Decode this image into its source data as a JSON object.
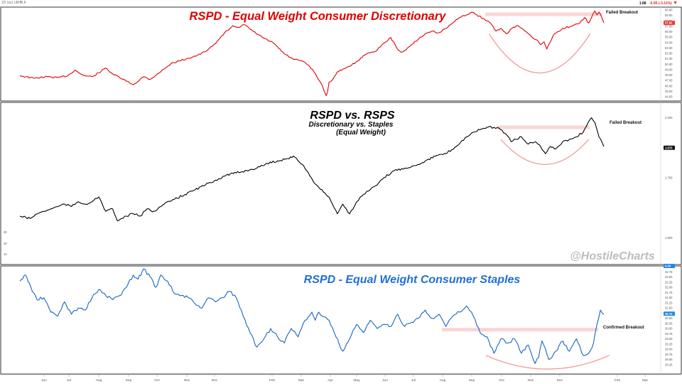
{
  "header": {
    "left_text": "1D (sc) | AHB.6",
    "price": "1.88",
    "change": "-0.06 (-3.11%)",
    "arrow": "▼"
  },
  "watermark": "@HostileCharts",
  "colors": {
    "panel1": "#e00000",
    "panel2": "#000000",
    "panel3": "#1565c0",
    "title3": "#1e6fd9",
    "curve": "#f2a0a0",
    "band": "#fbd5d5",
    "grid": "#eeeeee",
    "frame": "#333333",
    "axis_text": "#555555",
    "watermark": "#bdbdbd",
    "red_tag": "#e53935",
    "blue_tag": "#1e88e5"
  },
  "chart_data": [
    {
      "type": "line",
      "title": "RSPD - Equal Weight Consumer Discretionary",
      "series": [
        {
          "name": "RSPD",
          "x": [
            0,
            20,
            40,
            55,
            70,
            80,
            90,
            97,
            105,
            115,
            125,
            135,
            150,
            165,
            180,
            190,
            200,
            210,
            220,
            232,
            245,
            258,
            270,
            280,
            290,
            298,
            305,
            310,
            318,
            326,
            340,
            355,
            370,
            385,
            398,
            410,
            420,
            428,
            435,
            440,
            443,
            446,
            448,
            450,
            455,
            462,
            470,
            480,
            492,
            500,
            510,
            520,
            530,
            540,
            548,
            555,
            562,
            570,
            580,
            590,
            600,
            610,
            620,
            630,
            640,
            650,
            658,
            665,
            675,
            685,
            693,
            700,
            708,
            716,
            725,
            735,
            745,
            752,
            758,
            763,
            767,
            772,
            778,
            790,
            805,
            815,
            822,
            828,
            833,
            837,
            840,
            843,
            847,
            850
          ],
          "values": [
            47.9,
            47.4,
            47.7,
            47.5,
            47.9,
            48.9,
            48.1,
            47.8,
            47.7,
            48.4,
            49.3,
            48.2,
            47.2,
            46.2,
            47.7,
            47.2,
            48.2,
            49.1,
            50.1,
            50.6,
            51.1,
            51.6,
            52.3,
            53.3,
            54.6,
            55.8,
            56.5,
            57.1,
            56.8,
            57.3,
            56.0,
            54.8,
            53.8,
            51.9,
            50.9,
            50.6,
            49.8,
            48.6,
            47.1,
            46.1,
            45.0,
            44.2,
            45.0,
            46.7,
            47.1,
            48.6,
            49.1,
            49.6,
            50.6,
            51.6,
            52.1,
            52.6,
            53.9,
            54.9,
            53.1,
            52.2,
            52.6,
            53.6,
            54.6,
            55.6,
            56.1,
            55.8,
            56.6,
            57.6,
            58.6,
            59.1,
            59.6,
            59.1,
            58.4,
            57.6,
            56.1,
            56.6,
            55.6,
            56.6,
            57.1,
            56.1,
            55.0,
            54.5,
            53.6,
            54.1,
            52.8,
            54.1,
            55.6,
            56.6,
            57.1,
            57.6,
            58.6,
            57.6,
            58.9,
            59.8,
            59.1,
            59.6,
            58.6,
            57.6
          ]
        }
      ],
      "ylim": [
        44,
        60
      ],
      "yticks": [
        44.0,
        45.0,
        46.0,
        47.0,
        48.0,
        49.0,
        50.0,
        51.0,
        52.0,
        53.0,
        54.0,
        55.0,
        56.0,
        57.0,
        58.0,
        59.0,
        60.0
      ],
      "last_value": "57.62",
      "annotations": [
        {
          "text": "Failed Breakout"
        }
      ],
      "band_level": 59.2,
      "curve": {
        "start": 683,
        "end": 830,
        "top": 55.6,
        "bottom": 48.0
      }
    },
    {
      "type": "line",
      "title": "RSPD vs. RSPS",
      "subtitle_line1": "Discretionary vs. Staples",
      "subtitle_line2": "(Equal Weight)",
      "series": [
        {
          "name": "RSPD/RSPS",
          "x": [
            0,
            15,
            25,
            35,
            45,
            55,
            65,
            75,
            85,
            95,
            105,
            115,
            120,
            125,
            135,
            142,
            148,
            155,
            165,
            175,
            185,
            195,
            210,
            225,
            240,
            255,
            270,
            285,
            300,
            315,
            330,
            345,
            360,
            375,
            390,
            398,
            405,
            413,
            420,
            428,
            435,
            442,
            450,
            455,
            462,
            466,
            470,
            475,
            480,
            485,
            490,
            500,
            510,
            520,
            530,
            545,
            560,
            575,
            590,
            605,
            620,
            635,
            650,
            660,
            670,
            680,
            690,
            700,
            708,
            715,
            722,
            730,
            740,
            750,
            758,
            765,
            772,
            780,
            790,
            800,
            810,
            820,
            827,
            832,
            837,
            840,
            843,
            847,
            850
          ],
          "values": [
            1.59,
            1.58,
            1.6,
            1.61,
            1.62,
            1.63,
            1.64,
            1.63,
            1.65,
            1.64,
            1.65,
            1.67,
            1.64,
            1.61,
            1.62,
            1.57,
            1.58,
            1.59,
            1.6,
            1.59,
            1.62,
            1.61,
            1.64,
            1.66,
            1.68,
            1.7,
            1.72,
            1.74,
            1.76,
            1.77,
            1.78,
            1.79,
            1.81,
            1.82,
            1.83,
            1.84,
            1.82,
            1.8,
            1.77,
            1.73,
            1.71,
            1.69,
            1.67,
            1.64,
            1.6,
            1.62,
            1.64,
            1.62,
            1.6,
            1.62,
            1.65,
            1.68,
            1.7,
            1.72,
            1.75,
            1.78,
            1.79,
            1.8,
            1.82,
            1.84,
            1.85,
            1.88,
            1.92,
            1.94,
            1.95,
            1.96,
            1.96,
            1.95,
            1.93,
            1.9,
            1.91,
            1.92,
            1.89,
            1.9,
            1.88,
            1.85,
            1.88,
            1.87,
            1.9,
            1.91,
            1.92,
            1.94,
            1.98,
            2.0,
            1.98,
            1.95,
            1.92,
            1.9,
            1.88
          ]
        }
      ],
      "ylim": [
        1.43,
        2.04
      ],
      "yticks_major": [
        "1.500",
        "1.750",
        "2.000"
      ],
      "yticks_left": [
        "30",
        "20",
        "10"
      ],
      "last_value": "1.875",
      "annotations": [
        {
          "text": "Failed Breakout"
        }
      ],
      "band_level": 1.96,
      "curve": {
        "start": 700,
        "end": 828,
        "top": 1.91,
        "bottom": 1.8
      }
    },
    {
      "type": "line",
      "title": "RSPD - Equal Weight Consumer Staples",
      "series": [
        {
          "name": "RSPS",
          "x": [
            0,
            8,
            16,
            25,
            35,
            45,
            55,
            65,
            75,
            85,
            95,
            105,
            115,
            125,
            135,
            145,
            155,
            165,
            172,
            180,
            190,
            198,
            205,
            215,
            225,
            235,
            245,
            255,
            265,
            275,
            285,
            295,
            305,
            315,
            325,
            335,
            345,
            355,
            365,
            375,
            385,
            395,
            405,
            415,
            425,
            430,
            435,
            440,
            450,
            460,
            470,
            480,
            490,
            500,
            510,
            520,
            530,
            540,
            550,
            560,
            570,
            580,
            590,
            600,
            610,
            620,
            630,
            640,
            650,
            660,
            670,
            680,
            690,
            700,
            710,
            720,
            730,
            740,
            750,
            755,
            760,
            770,
            780,
            790,
            800,
            810,
            820,
            830,
            835,
            840,
            845,
            850
          ],
          "values": [
            32.3,
            32.6,
            32.0,
            31.4,
            31.5,
            30.8,
            30.6,
            31.3,
            30.7,
            31.0,
            30.9,
            31.5,
            31.9,
            31.6,
            31.4,
            31.6,
            32.0,
            32.6,
            32.4,
            32.9,
            32.5,
            32.0,
            32.6,
            32.3,
            31.7,
            31.6,
            31.5,
            31.2,
            31.0,
            31.5,
            31.3,
            31.5,
            31.8,
            31.5,
            30.6,
            29.8,
            29.1,
            29.5,
            30.0,
            29.6,
            29.3,
            30.0,
            29.6,
            30.4,
            30.8,
            30.4,
            30.8,
            30.6,
            30.4,
            29.6,
            28.9,
            29.5,
            30.2,
            29.8,
            30.4,
            30.0,
            30.2,
            30.1,
            30.7,
            30.1,
            30.3,
            30.5,
            30.9,
            30.5,
            30.7,
            30.1,
            30.6,
            30.8,
            31.1,
            30.6,
            29.8,
            29.6,
            28.8,
            29.5,
            29.3,
            29.5,
            28.8,
            29.2,
            28.3,
            28.6,
            29.4,
            28.5,
            28.9,
            29.4,
            28.9,
            29.5,
            28.7,
            28.9,
            29.3,
            30.2,
            30.9,
            30.7
          ]
        }
      ],
      "ylim": [
        28.0,
        32.9
      ],
      "yticks": [
        "32.75",
        "32.50",
        "32.25",
        "32.00",
        "31.75",
        "31.50",
        "31.25",
        "31.00",
        "30.75",
        "30.50",
        "30.25",
        "30.00",
        "29.75",
        "29.50",
        "29.25",
        "29.00",
        "28.75",
        "28.50",
        "28.25"
      ],
      "top_tag": "0.00",
      "last_value": "30.72",
      "annotations": [
        {
          "text": "Confirmed Breakout"
        }
      ],
      "band_level": 29.95,
      "curve": {
        "start": 678,
        "end": 858,
        "top": 28.7,
        "bottom": 28.0
      },
      "xticks": [
        "Jun",
        "Jul",
        "Aug",
        "Sep",
        "Oct",
        "Nov",
        "Dec",
        "Feb",
        "Mar",
        "Apr",
        "May",
        "Jun",
        "Jul",
        "Aug",
        "Sep",
        "Oct",
        "Nov",
        "Dec",
        "Feb",
        "Mar"
      ]
    }
  ]
}
